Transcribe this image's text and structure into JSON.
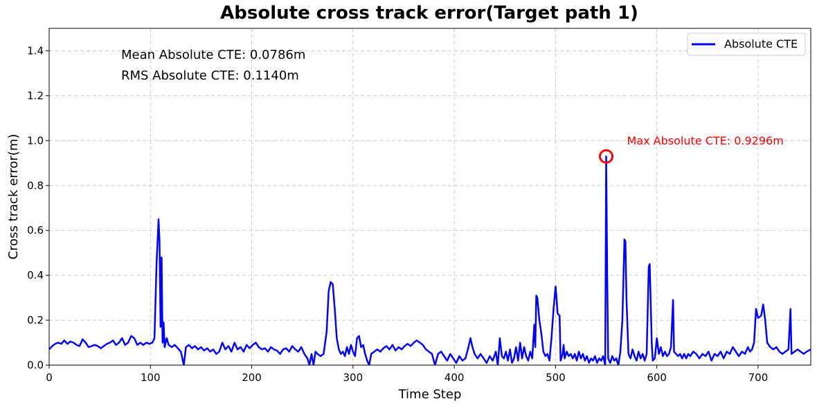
{
  "chart_data": {
    "type": "line",
    "title": "Absolute cross track error(Target path 1)",
    "xlabel": "Time Step",
    "ylabel": "Cross track error(m)",
    "xlim": [
      0,
      752
    ],
    "ylim": [
      0,
      1.5
    ],
    "x_ticks": [
      0,
      100,
      200,
      300,
      400,
      500,
      600,
      700
    ],
    "y_ticks": [
      0.0,
      0.2,
      0.4,
      0.6,
      0.8,
      1.0,
      1.2,
      1.4
    ],
    "x_tick_labels": [
      "0",
      "100",
      "200",
      "300",
      "400",
      "500",
      "600",
      "700"
    ],
    "y_tick_labels": [
      "0.0",
      "0.2",
      "0.4",
      "0.6",
      "0.8",
      "1.0",
      "1.2",
      "1.4"
    ],
    "grid": true,
    "legend_position": "top-right",
    "series": [
      {
        "name": "Absolute CTE",
        "color": "#0000ff",
        "points": [
          [
            0,
            0.07
          ],
          [
            3,
            0.085
          ],
          [
            6,
            0.095
          ],
          [
            9,
            0.1
          ],
          [
            12,
            0.095
          ],
          [
            15,
            0.11
          ],
          [
            18,
            0.095
          ],
          [
            21,
            0.105
          ],
          [
            24,
            0.1
          ],
          [
            27,
            0.09
          ],
          [
            30,
            0.085
          ],
          [
            33,
            0.115
          ],
          [
            36,
            0.1
          ],
          [
            39,
            0.08
          ],
          [
            42,
            0.085
          ],
          [
            45,
            0.09
          ],
          [
            48,
            0.085
          ],
          [
            51,
            0.075
          ],
          [
            54,
            0.085
          ],
          [
            57,
            0.095
          ],
          [
            60,
            0.1
          ],
          [
            63,
            0.11
          ],
          [
            66,
            0.09
          ],
          [
            69,
            0.1
          ],
          [
            72,
            0.12
          ],
          [
            75,
            0.09
          ],
          [
            78,
            0.1
          ],
          [
            81,
            0.13
          ],
          [
            84,
            0.12
          ],
          [
            87,
            0.09
          ],
          [
            90,
            0.1
          ],
          [
            93,
            0.09
          ],
          [
            96,
            0.1
          ],
          [
            99,
            0.095
          ],
          [
            102,
            0.1
          ],
          [
            104,
            0.12
          ],
          [
            106,
            0.45
          ],
          [
            108,
            0.65
          ],
          [
            109,
            0.55
          ],
          [
            110,
            0.17
          ],
          [
            111,
            0.48
          ],
          [
            112,
            0.1
          ],
          [
            113,
            0.19
          ],
          [
            114,
            0.08
          ],
          [
            116,
            0.12
          ],
          [
            118,
            0.09
          ],
          [
            121,
            0.08
          ],
          [
            124,
            0.09
          ],
          [
            127,
            0.075
          ],
          [
            130,
            0.06
          ],
          [
            132,
            0.02
          ],
          [
            133,
            0.0
          ],
          [
            135,
            0.08
          ],
          [
            138,
            0.09
          ],
          [
            141,
            0.075
          ],
          [
            144,
            0.085
          ],
          [
            147,
            0.07
          ],
          [
            150,
            0.08
          ],
          [
            153,
            0.065
          ],
          [
            156,
            0.075
          ],
          [
            159,
            0.06
          ],
          [
            162,
            0.07
          ],
          [
            165,
            0.05
          ],
          [
            168,
            0.06
          ],
          [
            171,
            0.1
          ],
          [
            174,
            0.07
          ],
          [
            177,
            0.085
          ],
          [
            180,
            0.06
          ],
          [
            183,
            0.1
          ],
          [
            186,
            0.07
          ],
          [
            189,
            0.08
          ],
          [
            192,
            0.06
          ],
          [
            195,
            0.09
          ],
          [
            198,
            0.075
          ],
          [
            201,
            0.09
          ],
          [
            204,
            0.1
          ],
          [
            207,
            0.08
          ],
          [
            210,
            0.07
          ],
          [
            213,
            0.075
          ],
          [
            216,
            0.06
          ],
          [
            219,
            0.08
          ],
          [
            222,
            0.07
          ],
          [
            225,
            0.065
          ],
          [
            228,
            0.05
          ],
          [
            231,
            0.07
          ],
          [
            234,
            0.075
          ],
          [
            237,
            0.06
          ],
          [
            240,
            0.085
          ],
          [
            243,
            0.07
          ],
          [
            246,
            0.06
          ],
          [
            249,
            0.08
          ],
          [
            252,
            0.05
          ],
          [
            255,
            0.03
          ],
          [
            257,
            0.0
          ],
          [
            259,
            0.05
          ],
          [
            261,
            0.0
          ],
          [
            263,
            0.06
          ],
          [
            265,
            0.05
          ],
          [
            268,
            0.04
          ],
          [
            271,
            0.05
          ],
          [
            274,
            0.15
          ],
          [
            276,
            0.33
          ],
          [
            278,
            0.37
          ],
          [
            280,
            0.36
          ],
          [
            282,
            0.25
          ],
          [
            284,
            0.12
          ],
          [
            286,
            0.07
          ],
          [
            288,
            0.05
          ],
          [
            290,
            0.06
          ],
          [
            292,
            0.04
          ],
          [
            294,
            0.08
          ],
          [
            296,
            0.05
          ],
          [
            298,
            0.09
          ],
          [
            300,
            0.06
          ],
          [
            302,
            0.04
          ],
          [
            304,
            0.12
          ],
          [
            306,
            0.13
          ],
          [
            308,
            0.08
          ],
          [
            310,
            0.09
          ],
          [
            312,
            0.05
          ],
          [
            314,
            0.02
          ],
          [
            316,
            0.0
          ],
          [
            318,
            0.05
          ],
          [
            321,
            0.06
          ],
          [
            324,
            0.07
          ],
          [
            327,
            0.06
          ],
          [
            330,
            0.075
          ],
          [
            333,
            0.085
          ],
          [
            336,
            0.07
          ],
          [
            339,
            0.09
          ],
          [
            342,
            0.065
          ],
          [
            345,
            0.08
          ],
          [
            348,
            0.07
          ],
          [
            351,
            0.085
          ],
          [
            354,
            0.095
          ],
          [
            357,
            0.085
          ],
          [
            360,
            0.1
          ],
          [
            363,
            0.11
          ],
          [
            366,
            0.1
          ],
          [
            369,
            0.09
          ],
          [
            372,
            0.07
          ],
          [
            375,
            0.06
          ],
          [
            378,
            0.05
          ],
          [
            381,
            0.0
          ],
          [
            384,
            0.05
          ],
          [
            387,
            0.06
          ],
          [
            390,
            0.04
          ],
          [
            393,
            0.02
          ],
          [
            396,
            0.05
          ],
          [
            399,
            0.03
          ],
          [
            402,
            0.01
          ],
          [
            405,
            0.04
          ],
          [
            408,
            0.02
          ],
          [
            411,
            0.03
          ],
          [
            414,
            0.08
          ],
          [
            416,
            0.12
          ],
          [
            418,
            0.08
          ],
          [
            420,
            0.05
          ],
          [
            423,
            0.03
          ],
          [
            426,
            0.05
          ],
          [
            429,
            0.03
          ],
          [
            432,
            0.01
          ],
          [
            435,
            0.04
          ],
          [
            438,
            0.02
          ],
          [
            441,
            0.06
          ],
          [
            443,
            0.0
          ],
          [
            445,
            0.12
          ],
          [
            447,
            0.04
          ],
          [
            449,
            0.03
          ],
          [
            451,
            0.06
          ],
          [
            453,
            0.02
          ],
          [
            455,
            0.07
          ],
          [
            457,
            0.01
          ],
          [
            459,
            0.03
          ],
          [
            461,
            0.08
          ],
          [
            463,
            0.02
          ],
          [
            465,
            0.1
          ],
          [
            467,
            0.03
          ],
          [
            469,
            0.08
          ],
          [
            471,
            0.04
          ],
          [
            473,
            0.02
          ],
          [
            475,
            0.06
          ],
          [
            477,
            0.03
          ],
          [
            479,
            0.18
          ],
          [
            480,
            0.08
          ],
          [
            481,
            0.31
          ],
          [
            482,
            0.3
          ],
          [
            484,
            0.2
          ],
          [
            486,
            0.14
          ],
          [
            488,
            0.06
          ],
          [
            490,
            0.04
          ],
          [
            492,
            0.05
          ],
          [
            494,
            0.02
          ],
          [
            496,
            0.12
          ],
          [
            498,
            0.25
          ],
          [
            500,
            0.35
          ],
          [
            501,
            0.3
          ],
          [
            502,
            0.23
          ],
          [
            504,
            0.22
          ],
          [
            505,
            0.02
          ],
          [
            507,
            0.05
          ],
          [
            508,
            0.09
          ],
          [
            509,
            0.03
          ],
          [
            511,
            0.06
          ],
          [
            513,
            0.04
          ],
          [
            515,
            0.05
          ],
          [
            517,
            0.03
          ],
          [
            519,
            0.05
          ],
          [
            521,
            0.02
          ],
          [
            523,
            0.06
          ],
          [
            525,
            0.03
          ],
          [
            527,
            0.05
          ],
          [
            529,
            0.02
          ],
          [
            531,
            0.04
          ],
          [
            533,
            0.01
          ],
          [
            535,
            0.03
          ],
          [
            537,
            0.02
          ],
          [
            539,
            0.04
          ],
          [
            541,
            0.01
          ],
          [
            543,
            0.03
          ],
          [
            545,
            0.02
          ],
          [
            547,
            0.04
          ],
          [
            549,
            0.0
          ],
          [
            550,
            0.93
          ],
          [
            551,
            0.4
          ],
          [
            552,
            0.03
          ],
          [
            554,
            0.01
          ],
          [
            556,
            0.04
          ],
          [
            558,
            0.02
          ],
          [
            560,
            0.03
          ],
          [
            562,
            0.0
          ],
          [
            564,
            0.06
          ],
          [
            566,
            0.2
          ],
          [
            568,
            0.56
          ],
          [
            569,
            0.55
          ],
          [
            570,
            0.3
          ],
          [
            572,
            0.05
          ],
          [
            574,
            0.03
          ],
          [
            576,
            0.07
          ],
          [
            578,
            0.04
          ],
          [
            580,
            0.02
          ],
          [
            582,
            0.06
          ],
          [
            584,
            0.03
          ],
          [
            586,
            0.05
          ],
          [
            588,
            0.02
          ],
          [
            590,
            0.05
          ],
          [
            592,
            0.44
          ],
          [
            593,
            0.45
          ],
          [
            595,
            0.1
          ],
          [
            596,
            0.02
          ],
          [
            598,
            0.03
          ],
          [
            600,
            0.12
          ],
          [
            602,
            0.05
          ],
          [
            604,
            0.08
          ],
          [
            606,
            0.04
          ],
          [
            608,
            0.06
          ],
          [
            610,
            0.04
          ],
          [
            612,
            0.05
          ],
          [
            614,
            0.08
          ],
          [
            616,
            0.29
          ],
          [
            617,
            0.06
          ],
          [
            619,
            0.05
          ],
          [
            621,
            0.04
          ],
          [
            623,
            0.05
          ],
          [
            625,
            0.03
          ],
          [
            627,
            0.05
          ],
          [
            629,
            0.03
          ],
          [
            631,
            0.05
          ],
          [
            633,
            0.04
          ],
          [
            636,
            0.06
          ],
          [
            639,
            0.05
          ],
          [
            642,
            0.03
          ],
          [
            645,
            0.05
          ],
          [
            648,
            0.04
          ],
          [
            651,
            0.06
          ],
          [
            654,
            0.02
          ],
          [
            657,
            0.05
          ],
          [
            660,
            0.04
          ],
          [
            663,
            0.06
          ],
          [
            666,
            0.03
          ],
          [
            669,
            0.06
          ],
          [
            672,
            0.05
          ],
          [
            675,
            0.08
          ],
          [
            678,
            0.06
          ],
          [
            681,
            0.04
          ],
          [
            684,
            0.06
          ],
          [
            687,
            0.05
          ],
          [
            690,
            0.08
          ],
          [
            692,
            0.06
          ],
          [
            694,
            0.07
          ],
          [
            696,
            0.1
          ],
          [
            698,
            0.25
          ],
          [
            700,
            0.21
          ],
          [
            703,
            0.22
          ],
          [
            705,
            0.27
          ],
          [
            707,
            0.2
          ],
          [
            709,
            0.1
          ],
          [
            712,
            0.08
          ],
          [
            715,
            0.07
          ],
          [
            718,
            0.08
          ],
          [
            721,
            0.06
          ],
          [
            724,
            0.05
          ],
          [
            727,
            0.06
          ],
          [
            730,
            0.07
          ],
          [
            732,
            0.25
          ],
          [
            733,
            0.05
          ],
          [
            736,
            0.06
          ],
          [
            739,
            0.07
          ],
          [
            742,
            0.06
          ],
          [
            745,
            0.05
          ],
          [
            748,
            0.06
          ],
          [
            752,
            0.07
          ]
        ]
      }
    ],
    "annotations": {
      "mean_text": "Mean Absolute CTE: 0.0786m",
      "rms_text": "RMS Absolute CTE: 0.1140m",
      "max_text": "Max Absolute CTE: 0.9296m",
      "max_point": [
        550,
        0.9296
      ],
      "max_color": "#ff0000"
    }
  }
}
